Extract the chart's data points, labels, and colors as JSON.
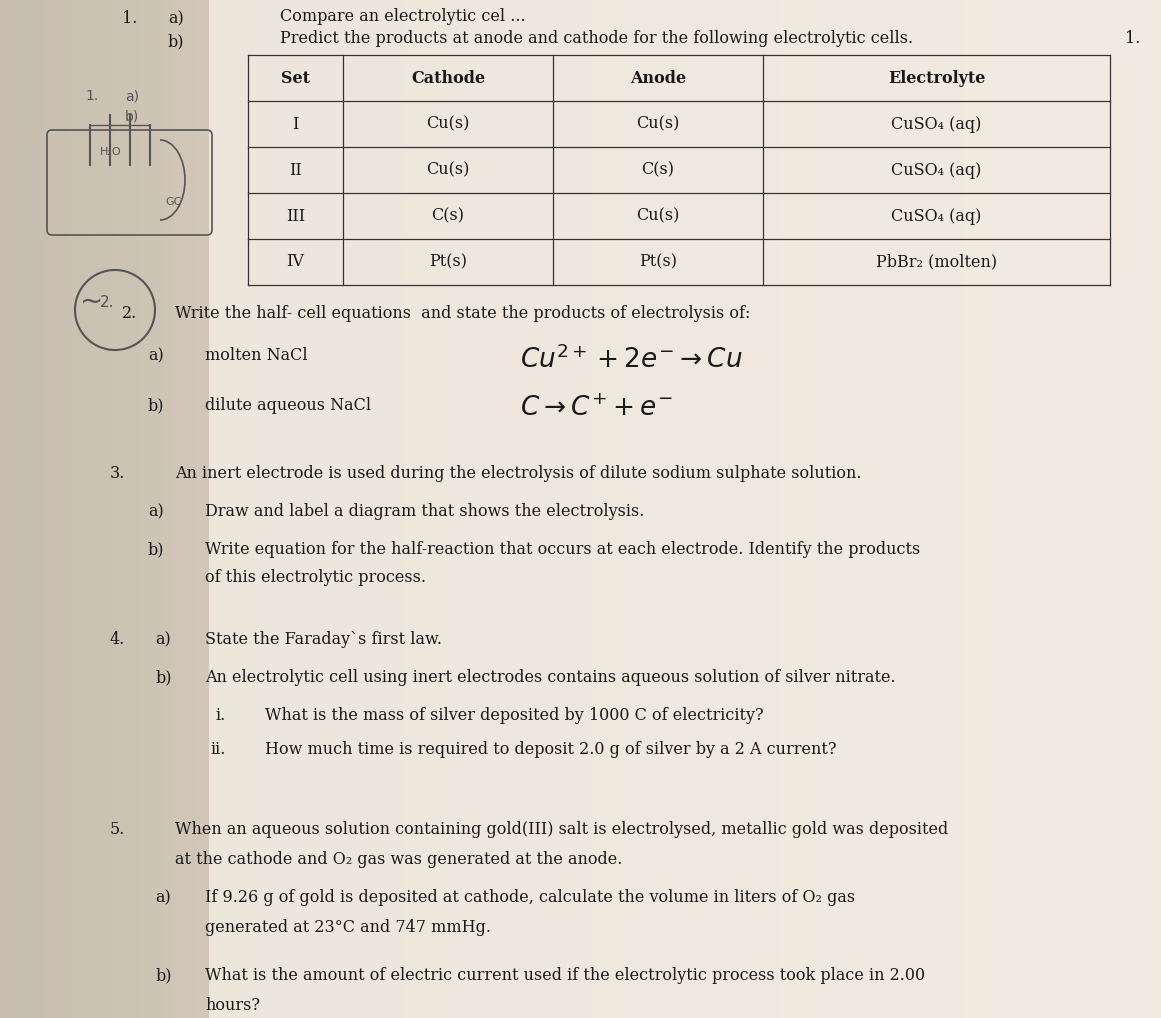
{
  "bg_color": "#b0a898",
  "page_color_center": "#f0ece4",
  "page_color_edge": "#d8d0c4",
  "text_color": "#1a1a1a",
  "dark_text": "#111111",
  "title_line1": "Compare an electrolytic cel ...",
  "title_line2": "Predict the products at anode and cathode for the following electrolytic cells.",
  "number_right": "1.",
  "table_headers": [
    "Set",
    "Cathode",
    "Anode",
    "Electrolyte"
  ],
  "table_rows": [
    [
      "I",
      "Cu(s)",
      "Cu(s)",
      "CuSO₄ (aq)"
    ],
    [
      "II",
      "Cu(s)",
      "C(s)",
      "CuSO₄ (aq)"
    ],
    [
      "III",
      "C(s)",
      "Cu(s)",
      "CuSO₄ (aq)"
    ],
    [
      "IV",
      "Pt(s)",
      "Pt(s)",
      "PbBr₂ (molten)"
    ]
  ],
  "q2_intro": "Write the half- cell equations  and state the products of electrolysis of:",
  "q2a_text": "molten NaCl",
  "q2b_text": "dilute aqueous NaCl",
  "q3_intro": "An inert electrode is used during the electrolysis of dilute sodium sulphate solution.",
  "q3a_text": "Draw and label a diagram that shows the electrolysis.",
  "q3b_text": "Write equation for the half-reaction that occurs at each electrode. Identify the products",
  "q3b_text2": "of this electrolytic process.",
  "q4a_text": "State the Faraday`s first law.",
  "q4b_text": "An electrolytic cell using inert electrodes contains aqueous solution of silver nitrate.",
  "q4bi_text": "What is the mass of silver deposited by 1000 C of electricity?",
  "q4bii_text": "How much time is required to deposit 2.0 g of silver by a 2 A current?",
  "q5_intro": "When an aqueous solution containing gold(III) salt is electrolysed, metallic gold was deposited",
  "q5_intro2": "at the cathode and O₂ gas was generated at the anode.",
  "q5a_text": "If 9.26 g of gold is deposited at cathode, calculate the volume in liters of O₂ gas",
  "q5a_text2": "generated at 23°C and 747 mmHg.",
  "q5b_text": "What is the amount of electric current used if the electrolytic process took place in 2.00",
  "q5b_text2": "hours?"
}
